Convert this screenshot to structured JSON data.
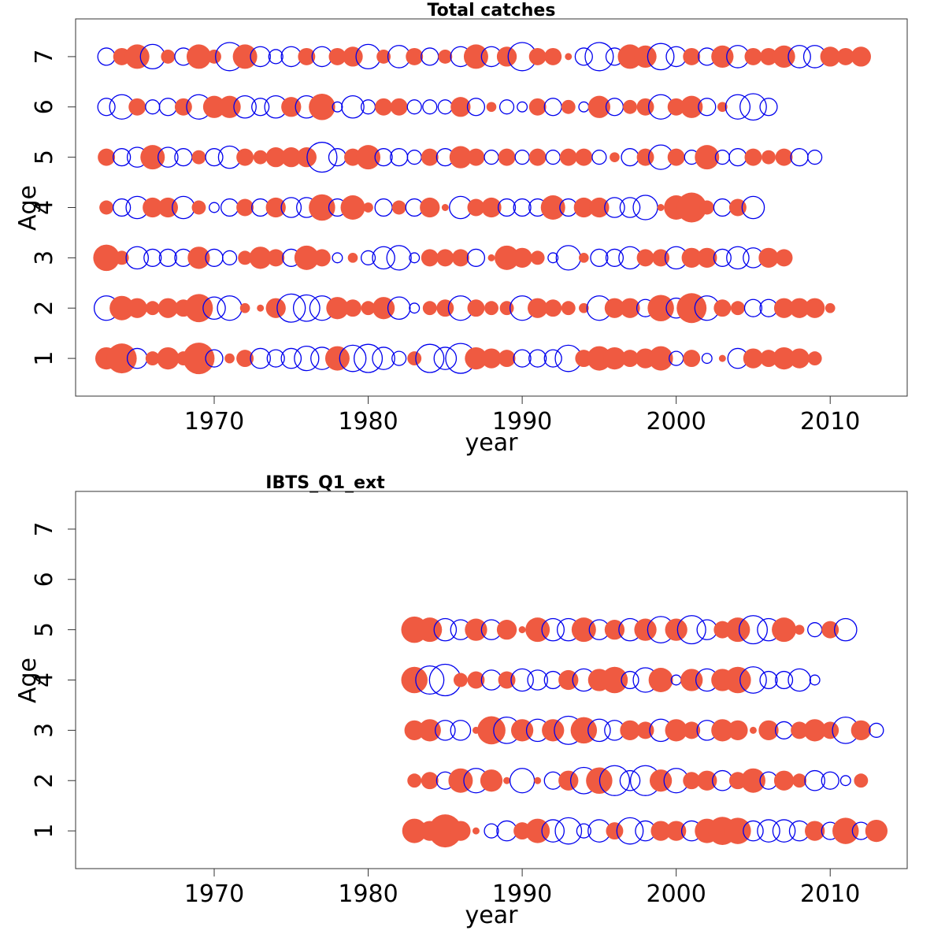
{
  "colors": {
    "positive": "#ef5a41",
    "negative": "#0000ee"
  },
  "chart_data": [
    {
      "type": "scatter",
      "title": "Total catches",
      "xlabel": "year",
      "ylabel": "Age",
      "xlim": [
        1961,
        2015
      ],
      "ylim": [
        0.25,
        7.75
      ],
      "xticks": [
        1970,
        1980,
        1990,
        2000,
        2010
      ],
      "yticks": [
        1,
        2,
        3,
        4,
        5,
        6,
        7
      ],
      "size_scale": 20,
      "year_start": 1963,
      "residuals": {
        "1": [
          0.5,
          0.9,
          -0.4,
          0.2,
          0.5,
          0.2,
          1.0,
          -0.3,
          0.1,
          0.3,
          -0.4,
          -0.3,
          -0.4,
          -0.6,
          -0.5,
          0.6,
          -0.7,
          -0.8,
          -0.5,
          -0.2,
          0.2,
          -0.8,
          -0.5,
          -0.9,
          0.5,
          0.4,
          0.3,
          -0.3,
          -0.3,
          -0.3,
          -0.7,
          0.3,
          0.6,
          0.5,
          0.3,
          0.4,
          0.6,
          -0.2,
          0.3,
          -0.1,
          0.05,
          -0.4,
          0.4,
          0.3,
          0.5,
          0.4,
          0.2
        ],
        "2": [
          -0.6,
          0.6,
          0.4,
          0.2,
          0.4,
          0.3,
          0.8,
          -0.5,
          -0.6,
          0.1,
          0.05,
          0.4,
          -0.8,
          -0.7,
          -0.6,
          0.5,
          0.3,
          0.2,
          0.5,
          -0.5,
          -0.1,
          0.2,
          0.3,
          -0.6,
          0.3,
          0.2,
          0.2,
          -0.6,
          0.4,
          0.3,
          0.2,
          0.1,
          -0.6,
          0.4,
          0.4,
          -0.3,
          0.7,
          -0.4,
          0.9,
          -0.6,
          0.3,
          0.2,
          -0.3,
          -0.3,
          0.4,
          0.4,
          0.4,
          0.1
        ],
        "3": [
          0.7,
          0.2,
          -0.5,
          -0.3,
          -0.3,
          -0.3,
          0.5,
          -0.3,
          -0.2,
          0.2,
          0.5,
          0.3,
          -0.3,
          0.6,
          0.3,
          -0.1,
          0.1,
          -0.2,
          -0.5,
          -0.6,
          -0.1,
          0.3,
          0.3,
          0.3,
          -0.3,
          0.05,
          0.6,
          0.4,
          0.2,
          -0.1,
          -0.6,
          0.1,
          -0.3,
          -0.3,
          -0.5,
          0.3,
          0.3,
          -0.5,
          0.4,
          0.4,
          -0.3,
          -0.5,
          -0.4,
          0.4,
          0.3
        ],
        "4": [
          0.2,
          -0.3,
          -0.5,
          0.4,
          0.4,
          -0.5,
          0.2,
          -0.1,
          -0.3,
          0.3,
          -0.3,
          0.4,
          -0.4,
          -0.4,
          0.7,
          -0.3,
          0.6,
          0.1,
          -0.3,
          0.2,
          -0.3,
          0.4,
          0.05,
          -0.5,
          0.3,
          0.4,
          -0.3,
          -0.3,
          -0.3,
          0.6,
          -0.3,
          0.4,
          0.4,
          -0.4,
          -0.4,
          -0.6,
          0.05,
          0.6,
          0.9,
          0.2,
          -0.3,
          0.3,
          -0.5
        ],
        "5": [
          0.3,
          -0.3,
          -0.4,
          0.6,
          -0.4,
          -0.3,
          0.2,
          -0.3,
          -0.5,
          0.3,
          0.2,
          0.4,
          0.4,
          0.4,
          -0.9,
          -0.3,
          0.3,
          0.6,
          -0.3,
          -0.3,
          -0.2,
          0.3,
          -0.3,
          0.5,
          0.3,
          -0.2,
          0.3,
          -0.2,
          0.3,
          -0.2,
          0.3,
          0.3,
          -0.2,
          0.1,
          -0.3,
          0.3,
          -0.6,
          0.3,
          -0.2,
          0.6,
          -0.2,
          -0.3,
          0.3,
          0.2,
          0.3,
          -0.3,
          -0.2
        ],
        "6": [
          -0.3,
          -0.6,
          0.3,
          -0.2,
          -0.3,
          0.3,
          -0.6,
          0.5,
          0.5,
          -0.5,
          -0.3,
          -0.5,
          0.4,
          -0.5,
          0.7,
          -0.1,
          -0.5,
          -0.2,
          0.3,
          0.3,
          -0.2,
          -0.2,
          -0.2,
          0.4,
          -0.3,
          0.1,
          -0.2,
          -0.1,
          0.3,
          -0.3,
          0.2,
          -0.1,
          0.5,
          -0.3,
          0.2,
          0.3,
          -0.6,
          0.3,
          0.5,
          -0.3,
          0.1,
          -0.6,
          -0.7,
          -0.3
        ],
        "7": [
          -0.3,
          0.3,
          0.6,
          -0.6,
          0.2,
          -0.3,
          0.6,
          0.2,
          -0.8,
          0.6,
          -0.4,
          -0.2,
          -0.4,
          0.3,
          -0.4,
          0.3,
          0.4,
          -0.6,
          0.2,
          -0.5,
          0.3,
          -0.3,
          0.2,
          -0.4,
          0.6,
          -0.4,
          0.4,
          -0.8,
          0.3,
          0.3,
          0.05,
          -0.3,
          -0.8,
          -0.3,
          0.6,
          0.5,
          -0.7,
          -0.4,
          0.3,
          -0.3,
          0.5,
          -0.5,
          0.3,
          0.3,
          0.5,
          -0.5,
          -0.5,
          0.4,
          0.3,
          0.4
        ]
      }
    },
    {
      "type": "scatter",
      "title": "IBTS_Q1_ext",
      "xlabel": "year",
      "ylabel": "Age",
      "xlim": [
        1961,
        2015
      ],
      "ylim": [
        0.25,
        7.75
      ],
      "xticks": [
        1970,
        1980,
        1990,
        2000,
        2010
      ],
      "yticks": [
        1,
        2,
        3,
        4,
        5,
        6,
        7
      ],
      "size_scale": 20,
      "year_start": 1983,
      "residuals": {
        "1": [
          0.6,
          0.4,
          1.1,
          0.4,
          0.05,
          -0.2,
          -0.4,
          0.3,
          0.6,
          -0.5,
          -0.7,
          -0.2,
          -0.5,
          0.3,
          -0.7,
          -0.4,
          0.4,
          0.4,
          -0.4,
          0.6,
          0.8,
          0.7,
          -0.4,
          -0.5,
          -0.5,
          -0.4,
          0.4,
          -0.3,
          0.7,
          -0.3,
          0.5
        ],
        "2": [
          0.2,
          0.3,
          -0.3,
          0.6,
          -0.6,
          0.5,
          0.05,
          -0.6,
          0.05,
          -0.3,
          0.4,
          -0.7,
          0.7,
          -0.9,
          -0.4,
          -0.9,
          0.5,
          -0.6,
          0.3,
          0.4,
          -0.4,
          0.3,
          0.6,
          -0.3,
          0.4,
          0.2,
          -0.4,
          -0.3,
          -0.1,
          0.2
        ],
        "3": [
          0.4,
          0.5,
          -0.4,
          -0.4,
          0.05,
          0.8,
          -0.7,
          0.5,
          -0.5,
          0.5,
          -0.8,
          0.7,
          -0.5,
          -0.4,
          0.4,
          0.3,
          -0.5,
          0.5,
          0.3,
          -0.4,
          0.5,
          0.4,
          0.05,
          0.4,
          -0.3,
          0.3,
          0.5,
          0.3,
          -0.7,
          0.4,
          -0.2
        ],
        "4": [
          0.7,
          -0.8,
          -1.0,
          0.2,
          0.3,
          -0.4,
          0.3,
          -0.5,
          -0.4,
          -0.3,
          0.4,
          -0.5,
          0.5,
          0.7,
          -0.3,
          -0.6,
          0.6,
          -0.1,
          0.5,
          -0.5,
          0.5,
          0.7,
          -0.7,
          -0.3,
          -0.3,
          -0.5,
          -0.1
        ],
        "5": [
          0.7,
          0.6,
          -0.5,
          -0.4,
          0.5,
          -0.4,
          0.4,
          0.05,
          0.6,
          -0.5,
          -0.5,
          0.6,
          -0.4,
          0.4,
          -0.5,
          0.5,
          -0.7,
          0.5,
          -0.8,
          -0.4,
          0.3,
          0.6,
          -0.8,
          -0.5,
          0.6,
          0.1,
          -0.2,
          0.3,
          -0.5
        ]
      }
    }
  ]
}
